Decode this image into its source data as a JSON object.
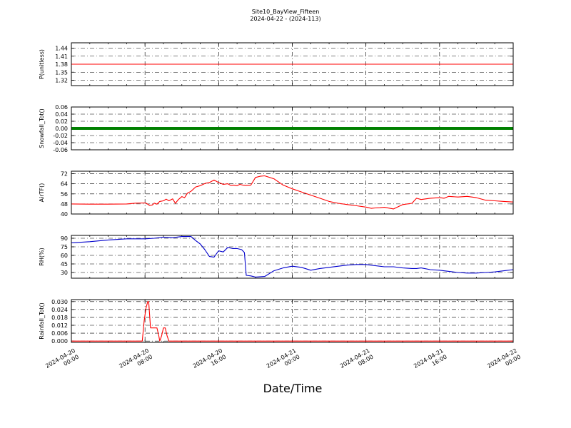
{
  "title_line1": "Site10_BayView_Fifteen",
  "title_line2": "2024-04-22 - (2024-113)",
  "xlabel": "Date/Time",
  "x_ticks": [
    {
      "line1": "2024-04-20",
      "line2": "00:00",
      "hours": 0
    },
    {
      "line1": "2024-04-20",
      "line2": "08:00",
      "hours": 8
    },
    {
      "line1": "2024-04-20",
      "line2": "16:00",
      "hours": 16
    },
    {
      "line1": "2024-04-21",
      "line2": "00:00",
      "hours": 24
    },
    {
      "line1": "2024-04-21",
      "line2": "08:00",
      "hours": 32
    },
    {
      "line1": "2024-04-21",
      "line2": "16:00",
      "hours": 40
    },
    {
      "line1": "2024-04-22",
      "line2": "00:00",
      "hours": 48
    }
  ],
  "chart_data": [
    {
      "type": "line",
      "ylabel": "P(unitless)",
      "ylim": [
        1.3,
        1.46
      ],
      "yticks": [
        "1.44",
        "1.41",
        "1.38",
        "1.35",
        "1.32"
      ],
      "ytick_values": [
        1.44,
        1.41,
        1.38,
        1.35,
        1.32
      ],
      "grid": true,
      "color": "#ff0000",
      "style": "line",
      "series": [
        {
          "x": [
            0,
            48
          ],
          "values": [
            1.38,
            1.38
          ]
        }
      ]
    },
    {
      "type": "line",
      "ylabel": "Snowfall_Tot()",
      "ylim": [
        -0.06,
        0.06
      ],
      "yticks": [
        "0.06",
        "0.04",
        "0.02",
        "0.00",
        "-0.02",
        "-0.04",
        "-0.06"
      ],
      "ytick_values": [
        0.06,
        0.04,
        0.02,
        0.0,
        -0.02,
        -0.04,
        -0.06
      ],
      "grid": true,
      "color": "#008000",
      "style": "thick",
      "series": [
        {
          "x": [
            0,
            48
          ],
          "values": [
            0.0,
            0.0
          ]
        }
      ]
    },
    {
      "type": "line",
      "ylabel": "AirTF()",
      "ylim": [
        40,
        74
      ],
      "yticks": [
        "72",
        "64",
        "56",
        "48",
        "40"
      ],
      "ytick_values": [
        72,
        64,
        56,
        48,
        40
      ],
      "grid": true,
      "color": "#ff0000",
      "style": "line",
      "series": [
        {
          "x": [
            0,
            2,
            4,
            6,
            7,
            8,
            8.2,
            8.5,
            8.8,
            9,
            9.3,
            9.6,
            10,
            10.3,
            10.6,
            11,
            11.3,
            11.6,
            12,
            12.3,
            12.6,
            13,
            13.5,
            14,
            14.3,
            14.6,
            15,
            15.5,
            16,
            16.5,
            17,
            17.3,
            17.6,
            18,
            18.3,
            18.6,
            19,
            19.5,
            20,
            20.5,
            21,
            22,
            23,
            24,
            25,
            26,
            27,
            28,
            29,
            30,
            31,
            32,
            32.3,
            32.6,
            33,
            33.5,
            34,
            35,
            36,
            37,
            37.5,
            38,
            39,
            40,
            40.5,
            41,
            42,
            43,
            44,
            45,
            46,
            47,
            48
          ],
          "values": [
            48,
            47.8,
            47.8,
            48,
            48.6,
            48.8,
            48.3,
            46.8,
            47.2,
            48.6,
            47.8,
            50,
            50.5,
            51.8,
            50.5,
            52,
            48.5,
            51.3,
            53.8,
            53,
            56.5,
            58,
            61.5,
            62.5,
            63.5,
            64.5,
            65,
            67,
            65,
            63.5,
            64,
            62.8,
            63,
            62.5,
            63.5,
            63,
            62.8,
            63,
            69,
            70,
            70.3,
            68,
            63,
            60,
            57.5,
            55,
            52.5,
            50,
            48.5,
            47.5,
            46.5,
            45.5,
            45,
            44.5,
            44.8,
            45,
            45.3,
            44,
            47.5,
            48.5,
            52.5,
            51.5,
            52.5,
            53,
            52.5,
            54,
            53.5,
            54,
            53,
            51,
            50.5,
            50,
            49.5
          ]
        }
      ]
    },
    {
      "type": "line",
      "ylabel": "RH(%)",
      "ylim": [
        20,
        95
      ],
      "yticks": [
        "90",
        "75",
        "60",
        "45",
        "30"
      ],
      "ytick_values": [
        90,
        75,
        60,
        45,
        30
      ],
      "grid": true,
      "color": "#0000cc",
      "style": "line",
      "series": [
        {
          "x": [
            0,
            2,
            4,
            6,
            8,
            9,
            10,
            11,
            12,
            13,
            13.5,
            14,
            14.5,
            15,
            15.5,
            16,
            16.5,
            17,
            17.5,
            18,
            18.5,
            18.8,
            19,
            19.5,
            20,
            21,
            22,
            23,
            24,
            25,
            26,
            27,
            28,
            29,
            30,
            31,
            32,
            33,
            34,
            35,
            36,
            37,
            37.5,
            38,
            39,
            40,
            41,
            42,
            43,
            44,
            45,
            46,
            47,
            48
          ],
          "values": [
            82,
            84,
            87,
            89,
            89,
            90,
            92,
            91,
            93,
            93,
            86,
            80,
            70,
            58,
            57,
            68,
            66,
            74,
            72,
            72,
            70,
            65,
            25,
            24,
            22,
            23,
            33,
            38,
            41,
            39,
            34,
            37,
            39,
            41,
            43,
            44,
            44,
            42,
            40,
            40,
            38,
            37,
            37,
            38,
            35,
            34,
            32,
            30,
            29,
            29,
            30,
            31,
            33,
            35
          ]
        }
      ]
    },
    {
      "type": "line",
      "ylabel": "Rainfall_Tot()",
      "ylim": [
        -0.001,
        0.0315
      ],
      "yticks": [
        "0.030",
        "0.024",
        "0.018",
        "0.012",
        "0.006",
        "0.000"
      ],
      "ytick_values": [
        0.03,
        0.024,
        0.018,
        0.012,
        0.006,
        0.0
      ],
      "grid": true,
      "color": "#ff0000",
      "style": "line",
      "series": [
        {
          "x": [
            0,
            7.7,
            7.9,
            8.1,
            8.3,
            8.4,
            8.6,
            8.8,
            9.3,
            9.5,
            9.6,
            9.8,
            10,
            10.2,
            10.4,
            10.6,
            48
          ],
          "values": [
            0,
            0,
            0.015,
            0.025,
            0.03,
            0.03,
            0.01,
            0.01,
            0.01,
            0.004,
            0,
            0.004,
            0.01,
            0.01,
            0.004,
            0,
            0
          ]
        }
      ]
    }
  ]
}
